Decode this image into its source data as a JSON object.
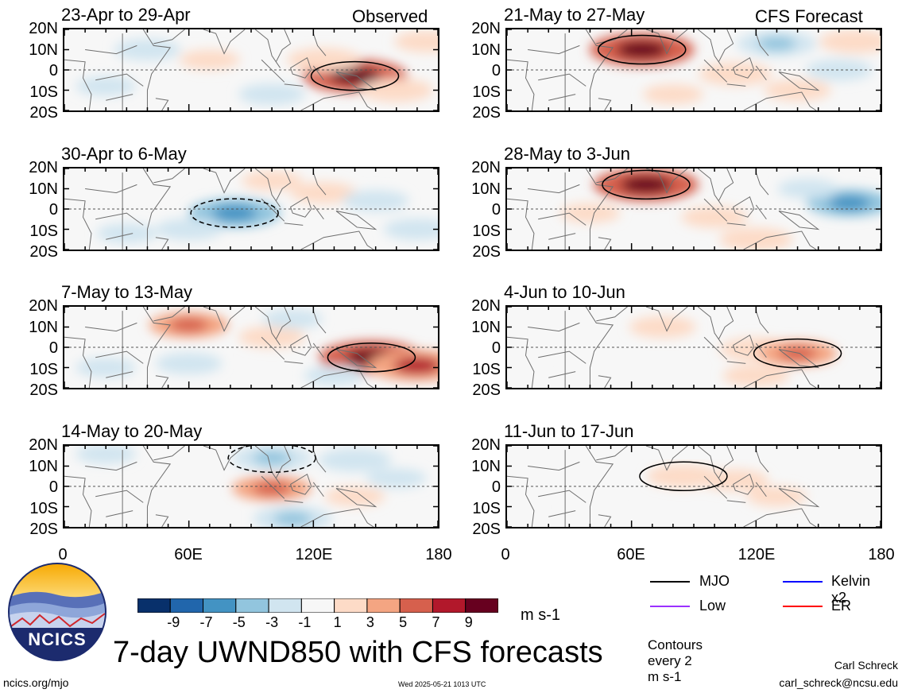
{
  "header": {
    "observed_label": "Observed",
    "forecast_label": "CFS Forecast"
  },
  "panels": [
    {
      "title": "23-Apr to 29-Apr",
      "column": "observed"
    },
    {
      "title": "30-Apr to 6-May",
      "column": "observed"
    },
    {
      "title": "7-May to 13-May",
      "column": "observed"
    },
    {
      "title": "14-May to 20-May",
      "column": "observed"
    },
    {
      "title": "21-May to 27-May",
      "column": "forecast"
    },
    {
      "title": "28-May to 3-Jun",
      "column": "forecast"
    },
    {
      "title": "4-Jun to 10-Jun",
      "column": "forecast"
    },
    {
      "title": "11-Jun to 17-Jun",
      "column": "forecast"
    }
  ],
  "chart_data": {
    "type": "heatmap",
    "title": "7-day UWND850 with CFS forecasts",
    "y_ticks": [
      "20N",
      "10N",
      "0",
      "10S",
      "20S"
    ],
    "x_ticks": [
      "0",
      "60E",
      "120E",
      "180"
    ],
    "x_range": [
      0,
      180
    ],
    "y_range": [
      -20,
      20
    ],
    "colorbar": {
      "unit": "m s-1",
      "tick_labels": [
        "-9",
        "-7",
        "-5",
        "-3",
        "-1",
        "1",
        "3",
        "5",
        "7",
        "9"
      ],
      "colors": [
        "#08306b",
        "#2166ac",
        "#4393c3",
        "#92c5de",
        "#d1e5f0",
        "#f7f7f7",
        "#fddbc7",
        "#f4a582",
        "#d6604d",
        "#b2182b",
        "#67001f"
      ]
    },
    "fields": [
      [
        {
          "lon": 140,
          "lat": -3,
          "v": 9
        },
        {
          "lon": 125,
          "lat": 5,
          "v": 4
        },
        {
          "lon": 160,
          "lat": -10,
          "v": 4
        },
        {
          "lon": 40,
          "lat": 10,
          "v": -3
        },
        {
          "lon": 100,
          "lat": -12,
          "v": -3
        },
        {
          "lon": 175,
          "lat": 14,
          "v": 3
        },
        {
          "lon": 70,
          "lat": 5,
          "v": 2
        },
        {
          "lon": 20,
          "lat": -8,
          "v": -2
        }
      ],
      [
        {
          "lon": 82,
          "lat": -2,
          "v": -7
        },
        {
          "lon": 125,
          "lat": 8,
          "v": 3
        },
        {
          "lon": 150,
          "lat": 4,
          "v": -3
        },
        {
          "lon": 170,
          "lat": -10,
          "v": -3
        },
        {
          "lon": 100,
          "lat": 14,
          "v": 2
        },
        {
          "lon": 30,
          "lat": -12,
          "v": -2
        },
        {
          "lon": 60,
          "lat": -10,
          "v": -3
        }
      ],
      [
        {
          "lon": 148,
          "lat": -5,
          "v": 9
        },
        {
          "lon": 170,
          "lat": -9,
          "v": 8
        },
        {
          "lon": 60,
          "lat": 11,
          "v": 5
        },
        {
          "lon": 100,
          "lat": 5,
          "v": 3
        },
        {
          "lon": 60,
          "lat": -8,
          "v": -3
        },
        {
          "lon": 130,
          "lat": -14,
          "v": -2
        },
        {
          "lon": 20,
          "lat": -10,
          "v": -2
        },
        {
          "lon": 110,
          "lat": 14,
          "v": -2
        }
      ],
      [
        {
          "lon": 100,
          "lat": 14,
          "v": -5
        },
        {
          "lon": 140,
          "lat": 13,
          "v": -4
        },
        {
          "lon": 110,
          "lat": -16,
          "v": -5
        },
        {
          "lon": 100,
          "lat": -1,
          "v": 5
        },
        {
          "lon": 140,
          "lat": -5,
          "v": 2
        },
        {
          "lon": 20,
          "lat": 16,
          "v": -2
        },
        {
          "lon": 160,
          "lat": 4,
          "v": -2
        }
      ],
      [
        {
          "lon": 65,
          "lat": 10,
          "v": 9
        },
        {
          "lon": 110,
          "lat": -2,
          "v": 4
        },
        {
          "lon": 130,
          "lat": 13,
          "v": -5
        },
        {
          "lon": 160,
          "lat": 0,
          "v": -3
        },
        {
          "lon": 168,
          "lat": 14,
          "v": 4
        },
        {
          "lon": 80,
          "lat": -12,
          "v": 2
        },
        {
          "lon": 140,
          "lat": -10,
          "v": 3
        }
      ],
      [
        {
          "lon": 67,
          "lat": 12,
          "v": 9
        },
        {
          "lon": 100,
          "lat": -4,
          "v": 3
        },
        {
          "lon": 165,
          "lat": 3,
          "v": -6
        },
        {
          "lon": 120,
          "lat": -15,
          "v": 4
        },
        {
          "lon": 40,
          "lat": -2,
          "v": 2
        },
        {
          "lon": 145,
          "lat": 10,
          "v": -2
        }
      ],
      [
        {
          "lon": 75,
          "lat": 10,
          "v": 3
        },
        {
          "lon": 120,
          "lat": -1,
          "v": 4
        },
        {
          "lon": 140,
          "lat": -3,
          "v": 5
        },
        {
          "lon": 120,
          "lat": -14,
          "v": 3
        },
        {
          "lon": 40,
          "lat": -15,
          "v": 1
        }
      ],
      [
        {
          "lon": 110,
          "lat": 3,
          "v": 3
        },
        {
          "lon": 85,
          "lat": 5,
          "v": 4
        },
        {
          "lon": 130,
          "lat": -5,
          "v": 2
        },
        {
          "lon": 40,
          "lat": -10,
          "v": 1
        }
      ]
    ]
  },
  "legend": {
    "items": [
      {
        "label": "MJO",
        "color": "#000000"
      },
      {
        "label": "Kelvin x2",
        "color": "#0000ff"
      },
      {
        "label": "Low",
        "color": "#9b30ff"
      },
      {
        "label": "ER",
        "color": "#ff0000"
      }
    ],
    "contour_note": "Contours every 2 m s-1"
  },
  "footer": {
    "logo_text": "NCICS",
    "main_title": "7-day UWND850 with CFS forecasts",
    "url": "ncics.org/mjo",
    "timestamp": "Wed 2025-05-21 1013 UTC",
    "author": "Carl Schreck",
    "email": "carl_schreck@ncsu.edu"
  }
}
